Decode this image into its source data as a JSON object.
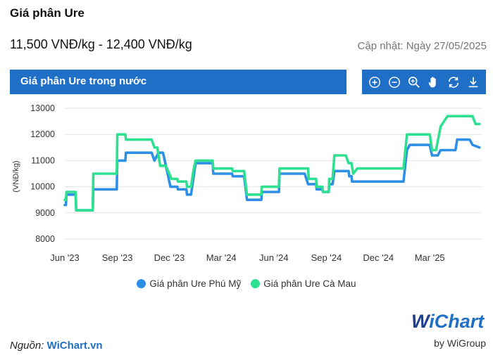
{
  "header": {
    "title": "Giá phân Ure",
    "price_range": "11,500 VNĐ/kg - 12,400 VNĐ/kg",
    "updated": "Cập nhật: Ngày 27/05/2025"
  },
  "panel": {
    "tab_label": "Giá phân Ure trong nước",
    "tools": [
      "zoom-in-icon",
      "zoom-out-icon",
      "magnify-icon",
      "pan-hand-icon",
      "reset-icon",
      "download-icon"
    ]
  },
  "colors": {
    "accent": "#1f6fc6",
    "series_phu_my": "#2e8fe6",
    "series_ca_mau": "#2ee08f"
  },
  "chart_data": {
    "type": "line",
    "ylabel": "(VNĐ/kg)",
    "xlabel": "",
    "ylim": [
      8000,
      13000
    ],
    "yticks": [
      8000,
      9000,
      10000,
      11000,
      12000,
      13000
    ],
    "xlim": [
      "2023-06-01",
      "2025-05-31"
    ],
    "xticks": [
      {
        "label": "Jun '23",
        "date": "2023-06-01"
      },
      {
        "label": "Sep '23",
        "date": "2023-09-01"
      },
      {
        "label": "Dec '23",
        "date": "2023-12-01"
      },
      {
        "label": "Mar '24",
        "date": "2024-03-01"
      },
      {
        "label": "Jun '24",
        "date": "2024-06-01"
      },
      {
        "label": "Sep '24",
        "date": "2024-09-01"
      },
      {
        "label": "Dec '24",
        "date": "2024-12-01"
      },
      {
        "label": "Mar '25",
        "date": "2025-03-01"
      }
    ],
    "grid": "horizontal",
    "legend_position": "bottom",
    "series": [
      {
        "name": "Giá phân Ure Phú Mỹ",
        "points": [
          [
            "2023-06-01",
            9300
          ],
          [
            "2023-06-03",
            9300
          ],
          [
            "2023-06-04",
            9700
          ],
          [
            "2023-06-20",
            9700
          ],
          [
            "2023-06-21",
            9100
          ],
          [
            "2023-07-20",
            9100
          ],
          [
            "2023-07-21",
            9900
          ],
          [
            "2023-08-31",
            9900
          ],
          [
            "2023-09-01",
            11000
          ],
          [
            "2023-09-15",
            11000
          ],
          [
            "2023-09-16",
            11300
          ],
          [
            "2023-10-31",
            11300
          ],
          [
            "2023-11-05",
            11000
          ],
          [
            "2023-11-12",
            11300
          ],
          [
            "2023-11-20",
            11300
          ],
          [
            "2023-11-28",
            10500
          ],
          [
            "2023-12-03",
            10000
          ],
          [
            "2023-12-15",
            10000
          ],
          [
            "2023-12-16",
            9900
          ],
          [
            "2023-12-31",
            9900
          ],
          [
            "2024-01-01",
            9700
          ],
          [
            "2024-01-08",
            9700
          ],
          [
            "2024-01-12",
            10300
          ],
          [
            "2024-01-16",
            10900
          ],
          [
            "2024-02-15",
            10900
          ],
          [
            "2024-02-16",
            10500
          ],
          [
            "2024-03-20",
            10500
          ],
          [
            "2024-03-21",
            10400
          ],
          [
            "2024-04-10",
            10400
          ],
          [
            "2024-04-15",
            9500
          ],
          [
            "2024-05-10",
            9500
          ],
          [
            "2024-05-11",
            9800
          ],
          [
            "2024-06-10",
            9800
          ],
          [
            "2024-06-11",
            10500
          ],
          [
            "2024-07-25",
            10500
          ],
          [
            "2024-07-31",
            10100
          ],
          [
            "2024-08-14",
            10100
          ],
          [
            "2024-08-15",
            9900
          ],
          [
            "2024-08-25",
            9900
          ],
          [
            "2024-08-26",
            9800
          ],
          [
            "2024-09-05",
            9800
          ],
          [
            "2024-09-06",
            10100
          ],
          [
            "2024-09-12",
            10100
          ],
          [
            "2024-09-15",
            10600
          ],
          [
            "2024-10-10",
            10600
          ],
          [
            "2024-10-11",
            10400
          ],
          [
            "2024-10-15",
            10400
          ],
          [
            "2024-10-16",
            10200
          ],
          [
            "2024-12-31",
            10200
          ],
          [
            "2025-01-14",
            10200
          ],
          [
            "2025-01-20",
            11400
          ],
          [
            "2025-01-25",
            11600
          ],
          [
            "2025-03-01",
            11600
          ],
          [
            "2025-03-05",
            11200
          ],
          [
            "2025-03-15",
            11200
          ],
          [
            "2025-03-20",
            11400
          ],
          [
            "2025-04-15",
            11400
          ],
          [
            "2025-04-18",
            11800
          ],
          [
            "2025-05-10",
            11800
          ],
          [
            "2025-05-15",
            11600
          ],
          [
            "2025-05-27",
            11500
          ]
        ]
      },
      {
        "name": "Giá phân Ure Cà Mau",
        "points": [
          [
            "2023-06-01",
            9500
          ],
          [
            "2023-06-03",
            9500
          ],
          [
            "2023-06-04",
            9800
          ],
          [
            "2023-06-20",
            9800
          ],
          [
            "2023-06-21",
            9100
          ],
          [
            "2023-07-20",
            9100
          ],
          [
            "2023-07-21",
            10500
          ],
          [
            "2023-08-31",
            10500
          ],
          [
            "2023-09-01",
            12000
          ],
          [
            "2023-09-15",
            12000
          ],
          [
            "2023-09-16",
            11800
          ],
          [
            "2023-10-31",
            11800
          ],
          [
            "2023-11-05",
            11500
          ],
          [
            "2023-11-10",
            11500
          ],
          [
            "2023-11-15",
            10800
          ],
          [
            "2023-11-25",
            10800
          ],
          [
            "2023-12-05",
            10300
          ],
          [
            "2023-12-15",
            10300
          ],
          [
            "2023-12-16",
            10200
          ],
          [
            "2023-12-31",
            10200
          ],
          [
            "2024-01-01",
            10000
          ],
          [
            "2024-01-08",
            10000
          ],
          [
            "2024-01-12",
            10600
          ],
          [
            "2024-01-16",
            11000
          ],
          [
            "2024-02-15",
            11000
          ],
          [
            "2024-02-16",
            10700
          ],
          [
            "2024-03-20",
            10700
          ],
          [
            "2024-03-21",
            10600
          ],
          [
            "2024-04-10",
            10600
          ],
          [
            "2024-04-15",
            9700
          ],
          [
            "2024-05-10",
            9700
          ],
          [
            "2024-05-11",
            10000
          ],
          [
            "2024-06-10",
            10000
          ],
          [
            "2024-06-11",
            10700
          ],
          [
            "2024-07-31",
            10700
          ],
          [
            "2024-08-01",
            10300
          ],
          [
            "2024-08-14",
            10300
          ],
          [
            "2024-08-15",
            10000
          ],
          [
            "2024-08-25",
            10000
          ],
          [
            "2024-08-26",
            9800
          ],
          [
            "2024-09-05",
            9800
          ],
          [
            "2024-09-06",
            10300
          ],
          [
            "2024-09-12",
            10300
          ],
          [
            "2024-09-15",
            11200
          ],
          [
            "2024-10-05",
            11200
          ],
          [
            "2024-10-10",
            10900
          ],
          [
            "2024-10-15",
            10900
          ],
          [
            "2024-10-18",
            10500
          ],
          [
            "2024-10-25",
            10700
          ],
          [
            "2024-12-31",
            10700
          ],
          [
            "2025-01-14",
            10700
          ],
          [
            "2025-01-20",
            12000
          ],
          [
            "2025-03-01",
            12000
          ],
          [
            "2025-03-05",
            11400
          ],
          [
            "2025-03-12",
            11400
          ],
          [
            "2025-03-20",
            12300
          ],
          [
            "2025-04-01",
            12700
          ],
          [
            "2025-05-15",
            12700
          ],
          [
            "2025-05-20",
            12400
          ],
          [
            "2025-05-27",
            12400
          ]
        ]
      }
    ]
  },
  "footer": {
    "source_label": "Nguồn: ",
    "source_link": "WiChart.vn",
    "logo_w": "W",
    "logo_rest": "iChart",
    "logo_sub": "by WiGroup"
  }
}
